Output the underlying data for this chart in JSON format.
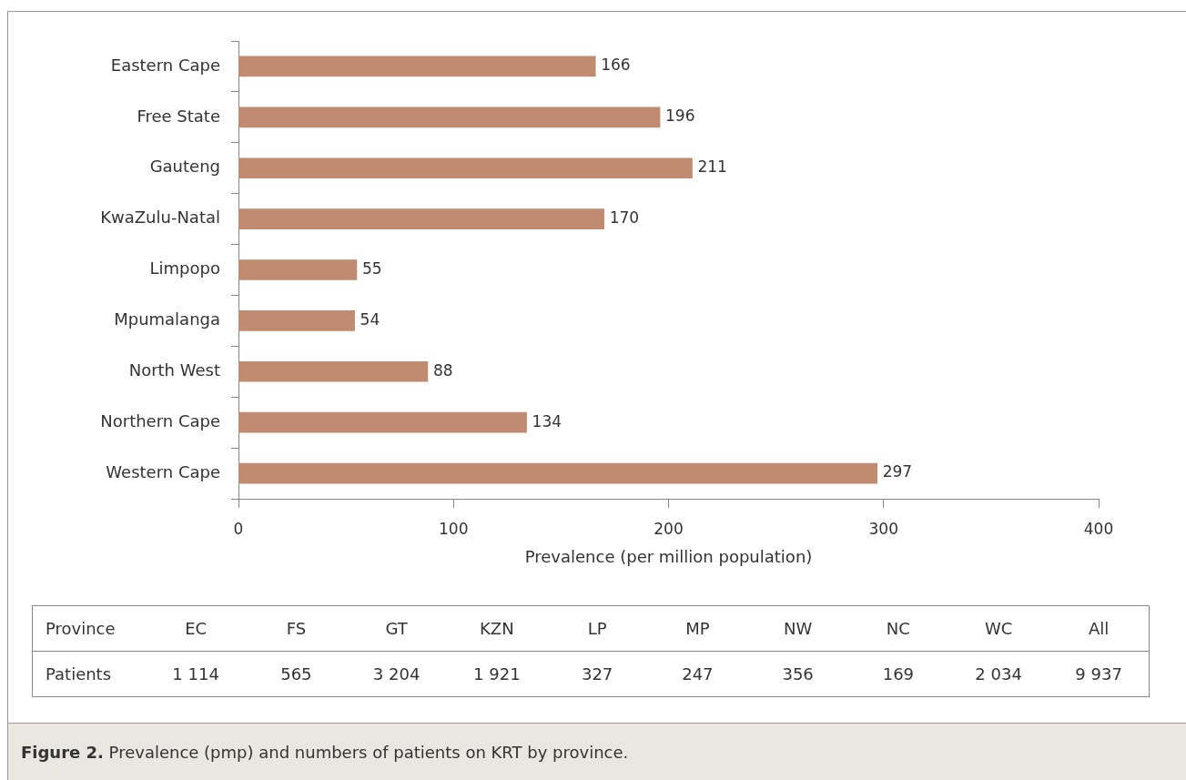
{
  "chart_data": [
    {
      "type": "bar",
      "orientation": "horizontal",
      "xlabel": "Prevalence (per million population)",
      "categories": [
        "Eastern Cape",
        "Free State",
        "Gauteng",
        "KwaZulu-Natal",
        "Limpopo",
        "Mpumalanga",
        "North West",
        "Northern Cape",
        "Western Cape"
      ],
      "values": [
        166,
        196,
        211,
        170,
        55,
        54,
        88,
        134,
        297
      ],
      "color": "#c08b70",
      "xlim": [
        0,
        400
      ],
      "xticks": [
        0,
        100,
        200,
        300,
        400
      ],
      "data_labels": true,
      "annotations": [
        "Figure 2. Prevalence (pmp) and numbers of patients on KRT by province."
      ]
    },
    {
      "type": "other",
      "xlabel": "Province",
      "ylabel": "Patients",
      "categories": [
        "EC",
        "FS",
        "GT",
        "KZN",
        "LP",
        "MP",
        "NW",
        "NC",
        "WC",
        "All"
      ],
      "value_labels": [
        "1 114",
        "565",
        "3 204",
        "1 921",
        "327",
        "247",
        "356",
        "169",
        "2 034",
        "9 937"
      ]
    }
  ]
}
